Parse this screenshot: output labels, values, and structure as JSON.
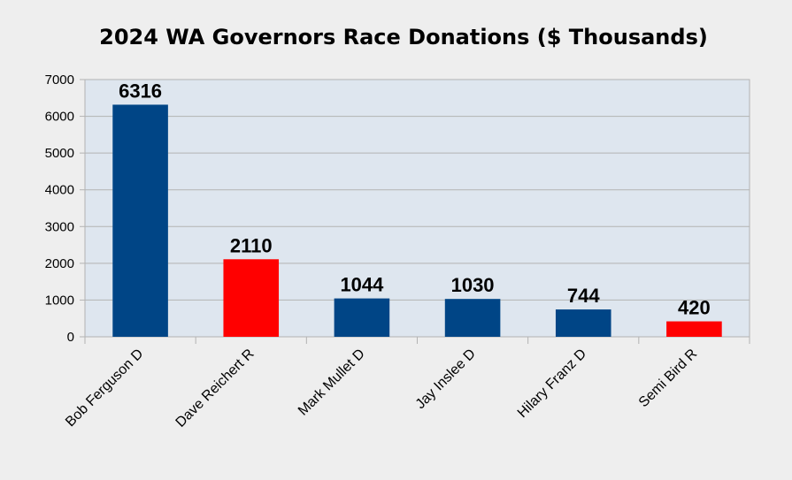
{
  "chart_data": {
    "type": "bar",
    "title": "2024 WA Governors Race Donations ($ Thousands)",
    "xlabel": "",
    "ylabel": "",
    "categories": [
      "Bob Ferguson D",
      "Dave Reichert R",
      "Mark Mullet D",
      "Jay Inslee D",
      "Hilary Franz D",
      "Semi Bird R"
    ],
    "values": [
      6316,
      2110,
      1044,
      1030,
      744,
      420
    ],
    "data_labels": [
      "6316",
      "2110",
      "1044",
      "1030",
      "744",
      "420"
    ],
    "bar_colors": [
      "#004586",
      "#ff0000",
      "#004586",
      "#004586",
      "#004586",
      "#ff0000"
    ],
    "ylim": [
      0,
      7000
    ],
    "yticks": [
      0,
      1000,
      2000,
      3000,
      4000,
      5000,
      6000,
      7000
    ],
    "grid": true,
    "legend": "none",
    "plot_background": "#dee6ef"
  }
}
